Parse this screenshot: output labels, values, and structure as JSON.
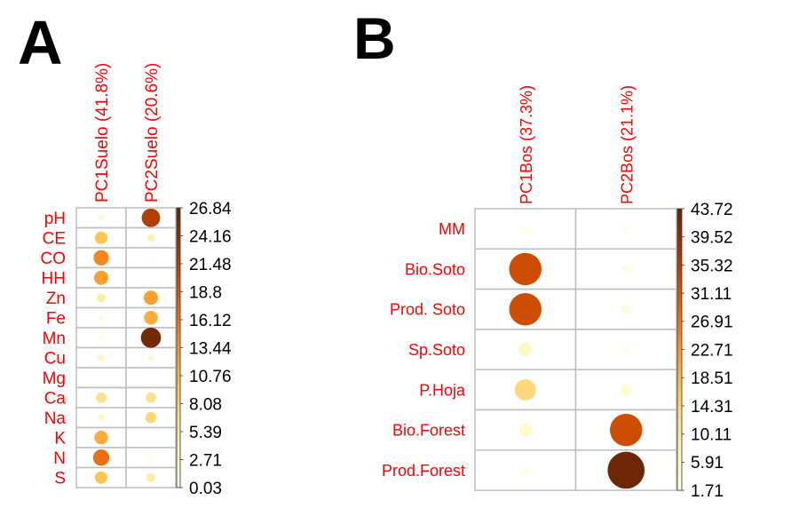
{
  "colors": {
    "labels": "#ff0000",
    "grid": "#bebebe",
    "colormap": [
      "#ffffe5",
      "#fff7bc",
      "#fee391",
      "#fec44f",
      "#fe9929",
      "#ec7014",
      "#cc4c02",
      "#993404",
      "#662506"
    ]
  },
  "chart_data": [
    {
      "type": "heatmap",
      "panel_label": "A",
      "marker": "circle",
      "columns": [
        "PC1Suelo (41.8%)",
        "PC2Suelo (20.6%)"
      ],
      "rows": [
        "pH",
        "CE",
        "CO",
        "HH",
        "Zn",
        "Fe",
        "Mn",
        "Cu",
        "Mg",
        "Ca",
        "Na",
        "K",
        "N",
        "S"
      ],
      "values": [
        [
          2,
          22
        ],
        [
          10,
          4
        ],
        [
          15,
          0.5
        ],
        [
          13,
          0.3
        ],
        [
          5,
          13
        ],
        [
          1.5,
          12
        ],
        [
          1,
          26
        ],
        [
          3,
          2
        ],
        [
          0.1,
          0.1
        ],
        [
          7,
          7
        ],
        [
          3,
          8
        ],
        [
          12,
          0.3
        ],
        [
          17,
          0.8
        ],
        [
          10,
          5
        ]
      ],
      "colorbar_ticks": [
        "26.84",
        "24.16",
        "21.48",
        "18.8",
        "16.12",
        "13.44",
        "10.76",
        "8.08",
        "5.39",
        "2.71",
        "0.03"
      ],
      "range": [
        0.03,
        26.84
      ]
    },
    {
      "type": "heatmap",
      "panel_label": "B",
      "marker": "circle",
      "columns": [
        "PC1Bos (37.3%)",
        "PC2Bos (21.1%)"
      ],
      "rows": [
        "MM",
        "Bio.Soto",
        "Prod. Soto",
        "Sp.Soto",
        "P.Hoja",
        "Bio.Forest",
        "Prod.Forest"
      ],
      "values": [
        [
          2,
          2
        ],
        [
          33,
          2
        ],
        [
          33,
          3
        ],
        [
          6,
          1.7
        ],
        [
          14,
          4
        ],
        [
          5,
          33
        ],
        [
          1.7,
          43
        ]
      ],
      "colorbar_ticks": [
        "43.72",
        "39.52",
        "35.32",
        "31.11",
        "26.91",
        "22.71",
        "18.51",
        "14.31",
        "10.11",
        "5.91",
        "1.71"
      ],
      "range": [
        1.71,
        43.72
      ]
    }
  ]
}
